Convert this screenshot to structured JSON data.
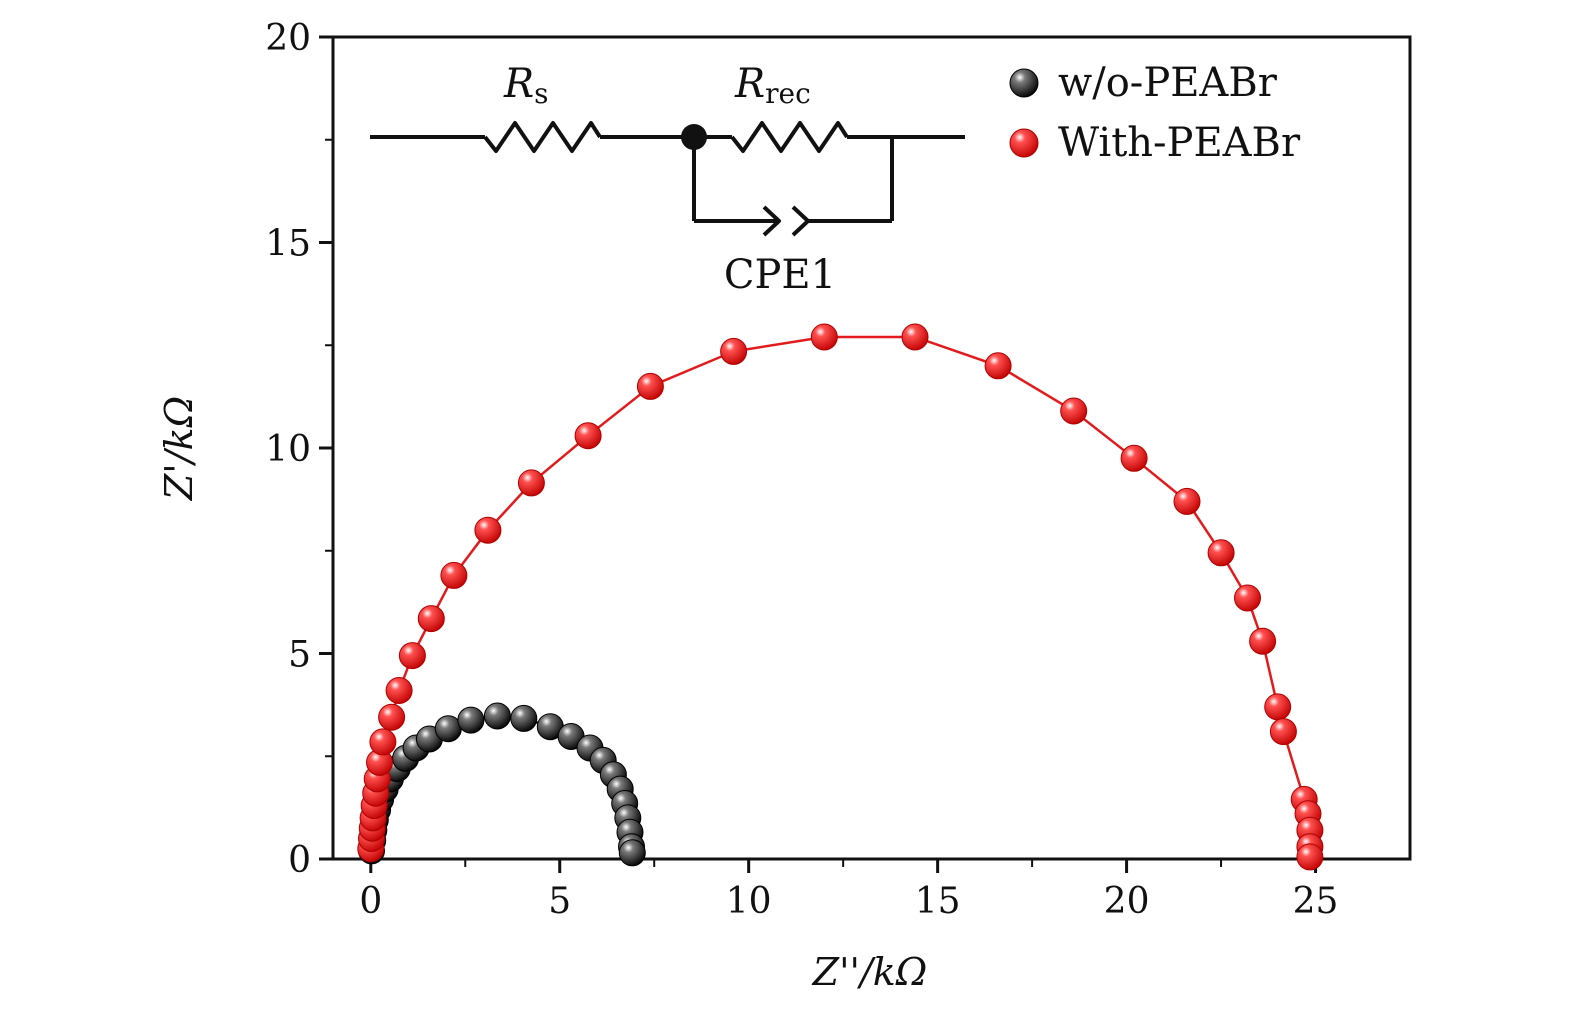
{
  "chart_data": {
    "type": "scatter",
    "title": "",
    "xlabel": "Z''/kΩ",
    "ylabel": "Z'/kΩ",
    "xlim": [
      -1,
      27.5
    ],
    "ylim": [
      0,
      20
    ],
    "xticks": [
      0,
      5,
      10,
      15,
      20,
      25
    ],
    "yticks": [
      0,
      5,
      10,
      15,
      20
    ],
    "xtick_labels": [
      "0",
      "5",
      "10",
      "15",
      "20",
      "25"
    ],
    "ytick_labels": [
      "0",
      "5",
      "10",
      "15",
      "20"
    ],
    "legend_position": "top-right",
    "grid": false,
    "series": [
      {
        "name": "w/o-PEABr",
        "color": "#111111",
        "marker": "sphere",
        "fit_line": true,
        "points": [
          [
            0.02,
            0.2
          ],
          [
            0.05,
            0.45
          ],
          [
            0.08,
            0.7
          ],
          [
            0.12,
            0.95
          ],
          [
            0.18,
            1.2
          ],
          [
            0.26,
            1.45
          ],
          [
            0.38,
            1.7
          ],
          [
            0.52,
            1.95
          ],
          [
            0.7,
            2.2
          ],
          [
            0.92,
            2.45
          ],
          [
            1.2,
            2.7
          ],
          [
            1.55,
            2.92
          ],
          [
            2.05,
            3.17
          ],
          [
            2.65,
            3.38
          ],
          [
            3.35,
            3.48
          ],
          [
            4.05,
            3.42
          ],
          [
            4.75,
            3.22
          ],
          [
            5.3,
            2.98
          ],
          [
            5.8,
            2.7
          ],
          [
            6.15,
            2.4
          ],
          [
            6.42,
            2.05
          ],
          [
            6.6,
            1.7
          ],
          [
            6.72,
            1.35
          ],
          [
            6.8,
            1.0
          ],
          [
            6.86,
            0.65
          ],
          [
            6.9,
            0.3
          ],
          [
            6.92,
            0.15
          ]
        ]
      },
      {
        "name": "With-PEABr",
        "color": "#e31a1c",
        "marker": "sphere",
        "fit_line": true,
        "points": [
          [
            0.0,
            0.25
          ],
          [
            0.02,
            0.5
          ],
          [
            0.04,
            0.75
          ],
          [
            0.06,
            1.0
          ],
          [
            0.09,
            1.3
          ],
          [
            0.13,
            1.6
          ],
          [
            0.17,
            1.95
          ],
          [
            0.23,
            2.35
          ],
          [
            0.32,
            2.85
          ],
          [
            0.55,
            3.45
          ],
          [
            0.75,
            4.1
          ],
          [
            1.1,
            4.95
          ],
          [
            1.6,
            5.85
          ],
          [
            2.2,
            6.9
          ],
          [
            3.1,
            8.0
          ],
          [
            4.25,
            9.15
          ],
          [
            5.75,
            10.3
          ],
          [
            7.4,
            11.5
          ],
          [
            9.6,
            12.35
          ],
          [
            12.0,
            12.7
          ],
          [
            14.4,
            12.7
          ],
          [
            16.6,
            12.0
          ],
          [
            18.6,
            10.9
          ],
          [
            20.2,
            9.75
          ],
          [
            21.6,
            8.7
          ],
          [
            22.5,
            7.45
          ],
          [
            23.2,
            6.35
          ],
          [
            23.6,
            5.3
          ],
          [
            24.0,
            3.7
          ],
          [
            24.15,
            3.1
          ],
          [
            24.7,
            1.45
          ],
          [
            24.8,
            1.1
          ],
          [
            24.85,
            0.7
          ],
          [
            24.85,
            0.3
          ],
          [
            24.85,
            0.05
          ]
        ]
      }
    ],
    "annotations": {
      "circuit": {
        "resistor_1_symbol": "R",
        "resistor_1_sub": "s",
        "resistor_2_symbol": "R",
        "resistor_2_sub": "rec",
        "cpe_label": "CPE1"
      }
    }
  }
}
